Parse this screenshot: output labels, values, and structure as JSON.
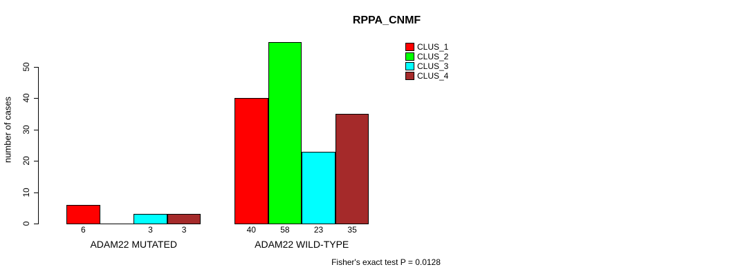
{
  "chart_data": {
    "type": "bar",
    "title": "RPPA_CNMF",
    "ylabel": "number of cases",
    "xlabel": "",
    "yticks": [
      0,
      10,
      20,
      30,
      40,
      50
    ],
    "ylim": [
      0,
      58
    ],
    "grid": false,
    "legend_position": "top-right",
    "categories": [
      "ADAM22 MUTATED",
      "ADAM22 WILD-TYPE"
    ],
    "series": [
      {
        "name": "CLUS_1",
        "color": "#ff0000",
        "values": [
          6,
          40
        ]
      },
      {
        "name": "CLUS_2",
        "color": "#00ff00",
        "values": [
          0,
          58
        ]
      },
      {
        "name": "CLUS_3",
        "color": "#00ffff",
        "values": [
          3,
          23
        ]
      },
      {
        "name": "CLUS_4",
        "color": "#a52a2a",
        "values": [
          3,
          35
        ]
      }
    ],
    "bar_labels": [
      [
        "6",
        "",
        "3",
        "3"
      ],
      [
        "40",
        "58",
        "23",
        "35"
      ]
    ],
    "annotation": "Fisher's exact test P = 0.0128"
  }
}
